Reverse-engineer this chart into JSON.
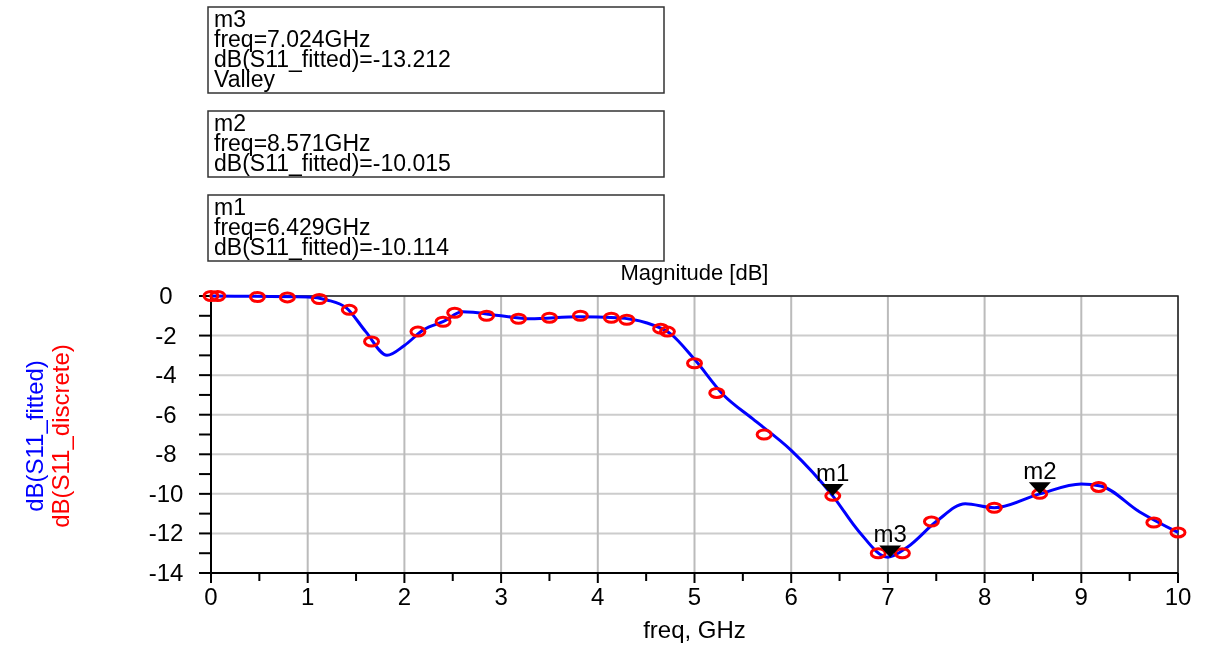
{
  "chart_data": {
    "type": "line",
    "title": "Magnitude [dB]",
    "xlabel": "freq, GHz",
    "xlim": [
      0,
      10
    ],
    "xticks": [
      0,
      {
        "value": 0.5,
        "label": null
      },
      1,
      {
        "value": 1.5,
        "label": null
      },
      2,
      {
        "value": 2.5,
        "label": null
      },
      3,
      {
        "value": 3.5,
        "label": null
      },
      4,
      {
        "value": 4.5,
        "label": null
      },
      5,
      {
        "value": 5.5,
        "label": null
      },
      6,
      {
        "value": 6.5,
        "label": null
      },
      7,
      {
        "value": 7.5,
        "label": null
      },
      8,
      {
        "value": 8.5,
        "label": null
      },
      9,
      {
        "value": 9.5,
        "label": null
      },
      10
    ],
    "ylim": [
      -14,
      0
    ],
    "yticks": [
      -14,
      {
        "value": -13,
        "label": null
      },
      -12,
      {
        "value": -11,
        "label": null
      },
      -10,
      {
        "value": -9,
        "label": null
      },
      -8,
      {
        "value": -7,
        "label": null
      },
      -6,
      {
        "value": -5,
        "label": null
      },
      -4,
      {
        "value": -3,
        "label": null
      },
      -2,
      {
        "value": -1,
        "label": null
      },
      0
    ],
    "grid": true,
    "legend": "left",
    "series": [
      {
        "name": "dB(S11_fitted)",
        "type": "line",
        "color": "#0000ff",
        "marker": "none",
        "line_style": "solid",
        "x": [
          0,
          1,
          1.2,
          1.4,
          1.6,
          1.82,
          2.0,
          2.2,
          2.4,
          2.6,
          3.0,
          3.3,
          3.8,
          4.2,
          4.5,
          4.75,
          5.0,
          5.3,
          5.6,
          6.0,
          6.43,
          6.7,
          7.0,
          7.2,
          7.5,
          7.8,
          8.1,
          8.57,
          9.0,
          9.2,
          9.6,
          10
        ],
        "values": [
          0,
          -0.05,
          -0.2,
          -0.6,
          -1.8,
          -3.0,
          -2.5,
          -1.7,
          -1.3,
          -0.8,
          -1.0,
          -1.15,
          -1.05,
          -1.1,
          -1.35,
          -1.9,
          -3.2,
          -5.0,
          -6.2,
          -7.8,
          -10.1,
          -11.9,
          -13.2,
          -12.7,
          -11.4,
          -10.5,
          -10.7,
          -10.0,
          -9.5,
          -9.6,
          -10.9,
          -11.95
        ]
      },
      {
        "name": "dB(S11_discrete)",
        "type": "scatter",
        "color": "#ff0000",
        "marker": "circle",
        "x": [
          0,
          0.07,
          0.48,
          0.79,
          1.12,
          1.43,
          1.66,
          2.14,
          2.4,
          2.52,
          2.85,
          3.18,
          3.5,
          3.82,
          4.14,
          4.3,
          4.65,
          4.72,
          5.0,
          5.23,
          5.72,
          6.43,
          6.9,
          7.15,
          7.45,
          8.1,
          8.57,
          9.18,
          9.75,
          10
        ],
        "values": [
          0,
          0,
          -0.05,
          -0.07,
          -0.15,
          -0.7,
          -2.3,
          -1.8,
          -1.3,
          -0.85,
          -1.0,
          -1.15,
          -1.1,
          -1.0,
          -1.1,
          -1.2,
          -1.65,
          -1.8,
          -3.4,
          -4.9,
          -7.0,
          -10.1,
          -13.0,
          -13.0,
          -11.4,
          -10.7,
          -10.0,
          -9.65,
          -11.45,
          -11.95
        ]
      }
    ],
    "annotations": [
      "m3\nfreq=7.024GHz\ndB(S11_fitted)=-13.212\nValley",
      "m2\nfreq=8.571GHz\ndB(S11_fitted)=-10.015",
      "m1\nfreq=6.429GHz\ndB(S11_fitted)=-10.114",
      {
        "text": "m1",
        "x": 6.429,
        "y": -10.114
      },
      {
        "text": "m2",
        "x": 8.571,
        "y": -10.015
      },
      {
        "text": "m3",
        "x": 7.024,
        "y": -13.212
      }
    ]
  }
}
